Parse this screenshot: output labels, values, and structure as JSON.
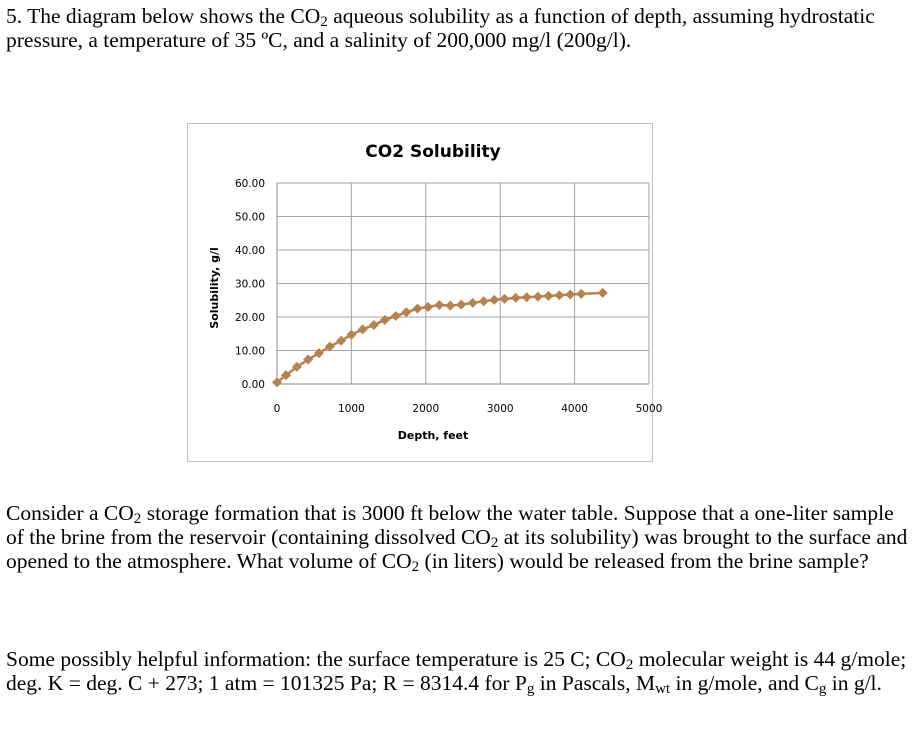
{
  "question": {
    "line1_a": "5.  The diagram below shows the CO",
    "sub1": "2",
    "line1_b": " aqueous solubility as a function of depth, assuming hydrostatic pressure, a temperature of 35 ºC, and a salinity of 200,000 mg/l (200g/l)."
  },
  "paragraph2": {
    "a": "Consider a CO",
    "sub_a": "2",
    "b": " storage formation that is 3000 ft below the water table.  Suppose that a one-liter sample of the brine from the reservoir (containing dissolved CO",
    "sub_b": "2",
    "c": " at its solubility) was brought to the surface and opened to the atmosphere.  What volume of CO",
    "sub_c": "2",
    "d": " (in liters) would be released from the brine sample?"
  },
  "paragraph3": {
    "a": "Some possibly helpful information:  the surface temperature is 25 C; CO",
    "sub_a": "2",
    "b": " molecular weight is 44 g/mole; deg. K = deg. C + 273;  1 atm = 101325 Pa;  R = 8314.4 for P",
    "sub_b": "g",
    "c": " in Pascals, M",
    "sub_c": "wt",
    "d": " in g/mole, and C",
    "sub_d": "g",
    "e": " in g/l."
  },
  "chart_data": {
    "type": "line",
    "title": "CO2 Solubility",
    "xlabel": "Depth, feet",
    "ylabel": "Solubility, g/l",
    "xlim": [
      0,
      5000
    ],
    "ylim": [
      0,
      60
    ],
    "xticks": [
      "0",
      "1000",
      "2000",
      "3000",
      "4000",
      "5000"
    ],
    "yticks": [
      "0.00",
      "10.00",
      "20.00",
      "30.00",
      "40.00",
      "50.00",
      "60.00"
    ],
    "grid": true,
    "marker": "diamond",
    "color": "#b5834f",
    "x": [
      0,
      120,
      267,
      418,
      564,
      711,
      862,
      1000,
      1151,
      1302,
      1449,
      1596,
      1738,
      1889,
      2031,
      2182,
      2329,
      2476,
      2631,
      2778,
      2920,
      3058,
      3209,
      3356,
      3507,
      3649,
      3796,
      3942,
      4089,
      4378
    ],
    "y": [
      0.5,
      2.6,
      5.1,
      7.3,
      9.2,
      11.2,
      12.9,
      14.7,
      16.3,
      17.6,
      19.1,
      20.3,
      21.4,
      22.5,
      23.0,
      23.6,
      23.4,
      23.7,
      24.2,
      24.7,
      25.1,
      25.4,
      25.7,
      25.9,
      26.1,
      26.3,
      26.5,
      26.7,
      26.9,
      27.2
    ]
  }
}
